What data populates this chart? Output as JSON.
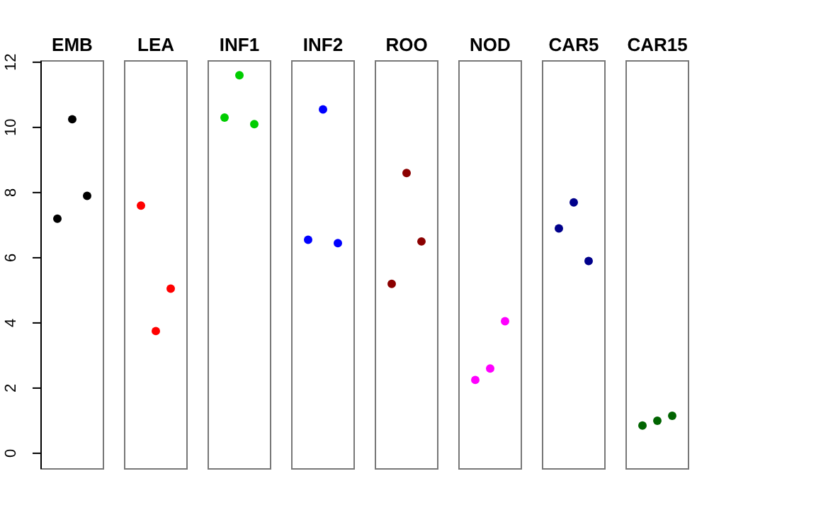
{
  "chart_data": {
    "type": "scatter",
    "categories": [
      "EMB",
      "LEA",
      "INF1",
      "INF2",
      "ROO",
      "NOD",
      "CAR5",
      "CAR15"
    ],
    "series": [
      {
        "values": [
          7.2,
          7.6,
          10.3,
          6.55,
          5.2,
          2.25,
          6.9,
          0.85
        ],
        "colors": [
          "#000000",
          "#ff0000",
          "#00cd00",
          "#0000ff",
          "#8b0000",
          "#ff00ff",
          "#00008b",
          "#006400"
        ]
      },
      {
        "values": [
          10.25,
          3.75,
          11.6,
          10.55,
          8.6,
          2.6,
          7.7,
          1.0
        ],
        "colors": [
          "#000000",
          "#ff0000",
          "#00cd00",
          "#0000ff",
          "#8b0000",
          "#ff00ff",
          "#00008b",
          "#006400"
        ]
      },
      {
        "values": [
          7.9,
          5.05,
          10.1,
          6.45,
          6.5,
          4.05,
          5.9,
          1.15
        ],
        "colors": [
          "#000000",
          "#ff0000",
          "#00cd00",
          "#0000ff",
          "#8b0000",
          "#ff00ff",
          "#00008b",
          "#006400"
        ]
      }
    ],
    "ylim": [
      -0.48,
      12.04
    ],
    "yticks": [
      0,
      2,
      4,
      6,
      8,
      10,
      12
    ],
    "marker": "circle"
  }
}
